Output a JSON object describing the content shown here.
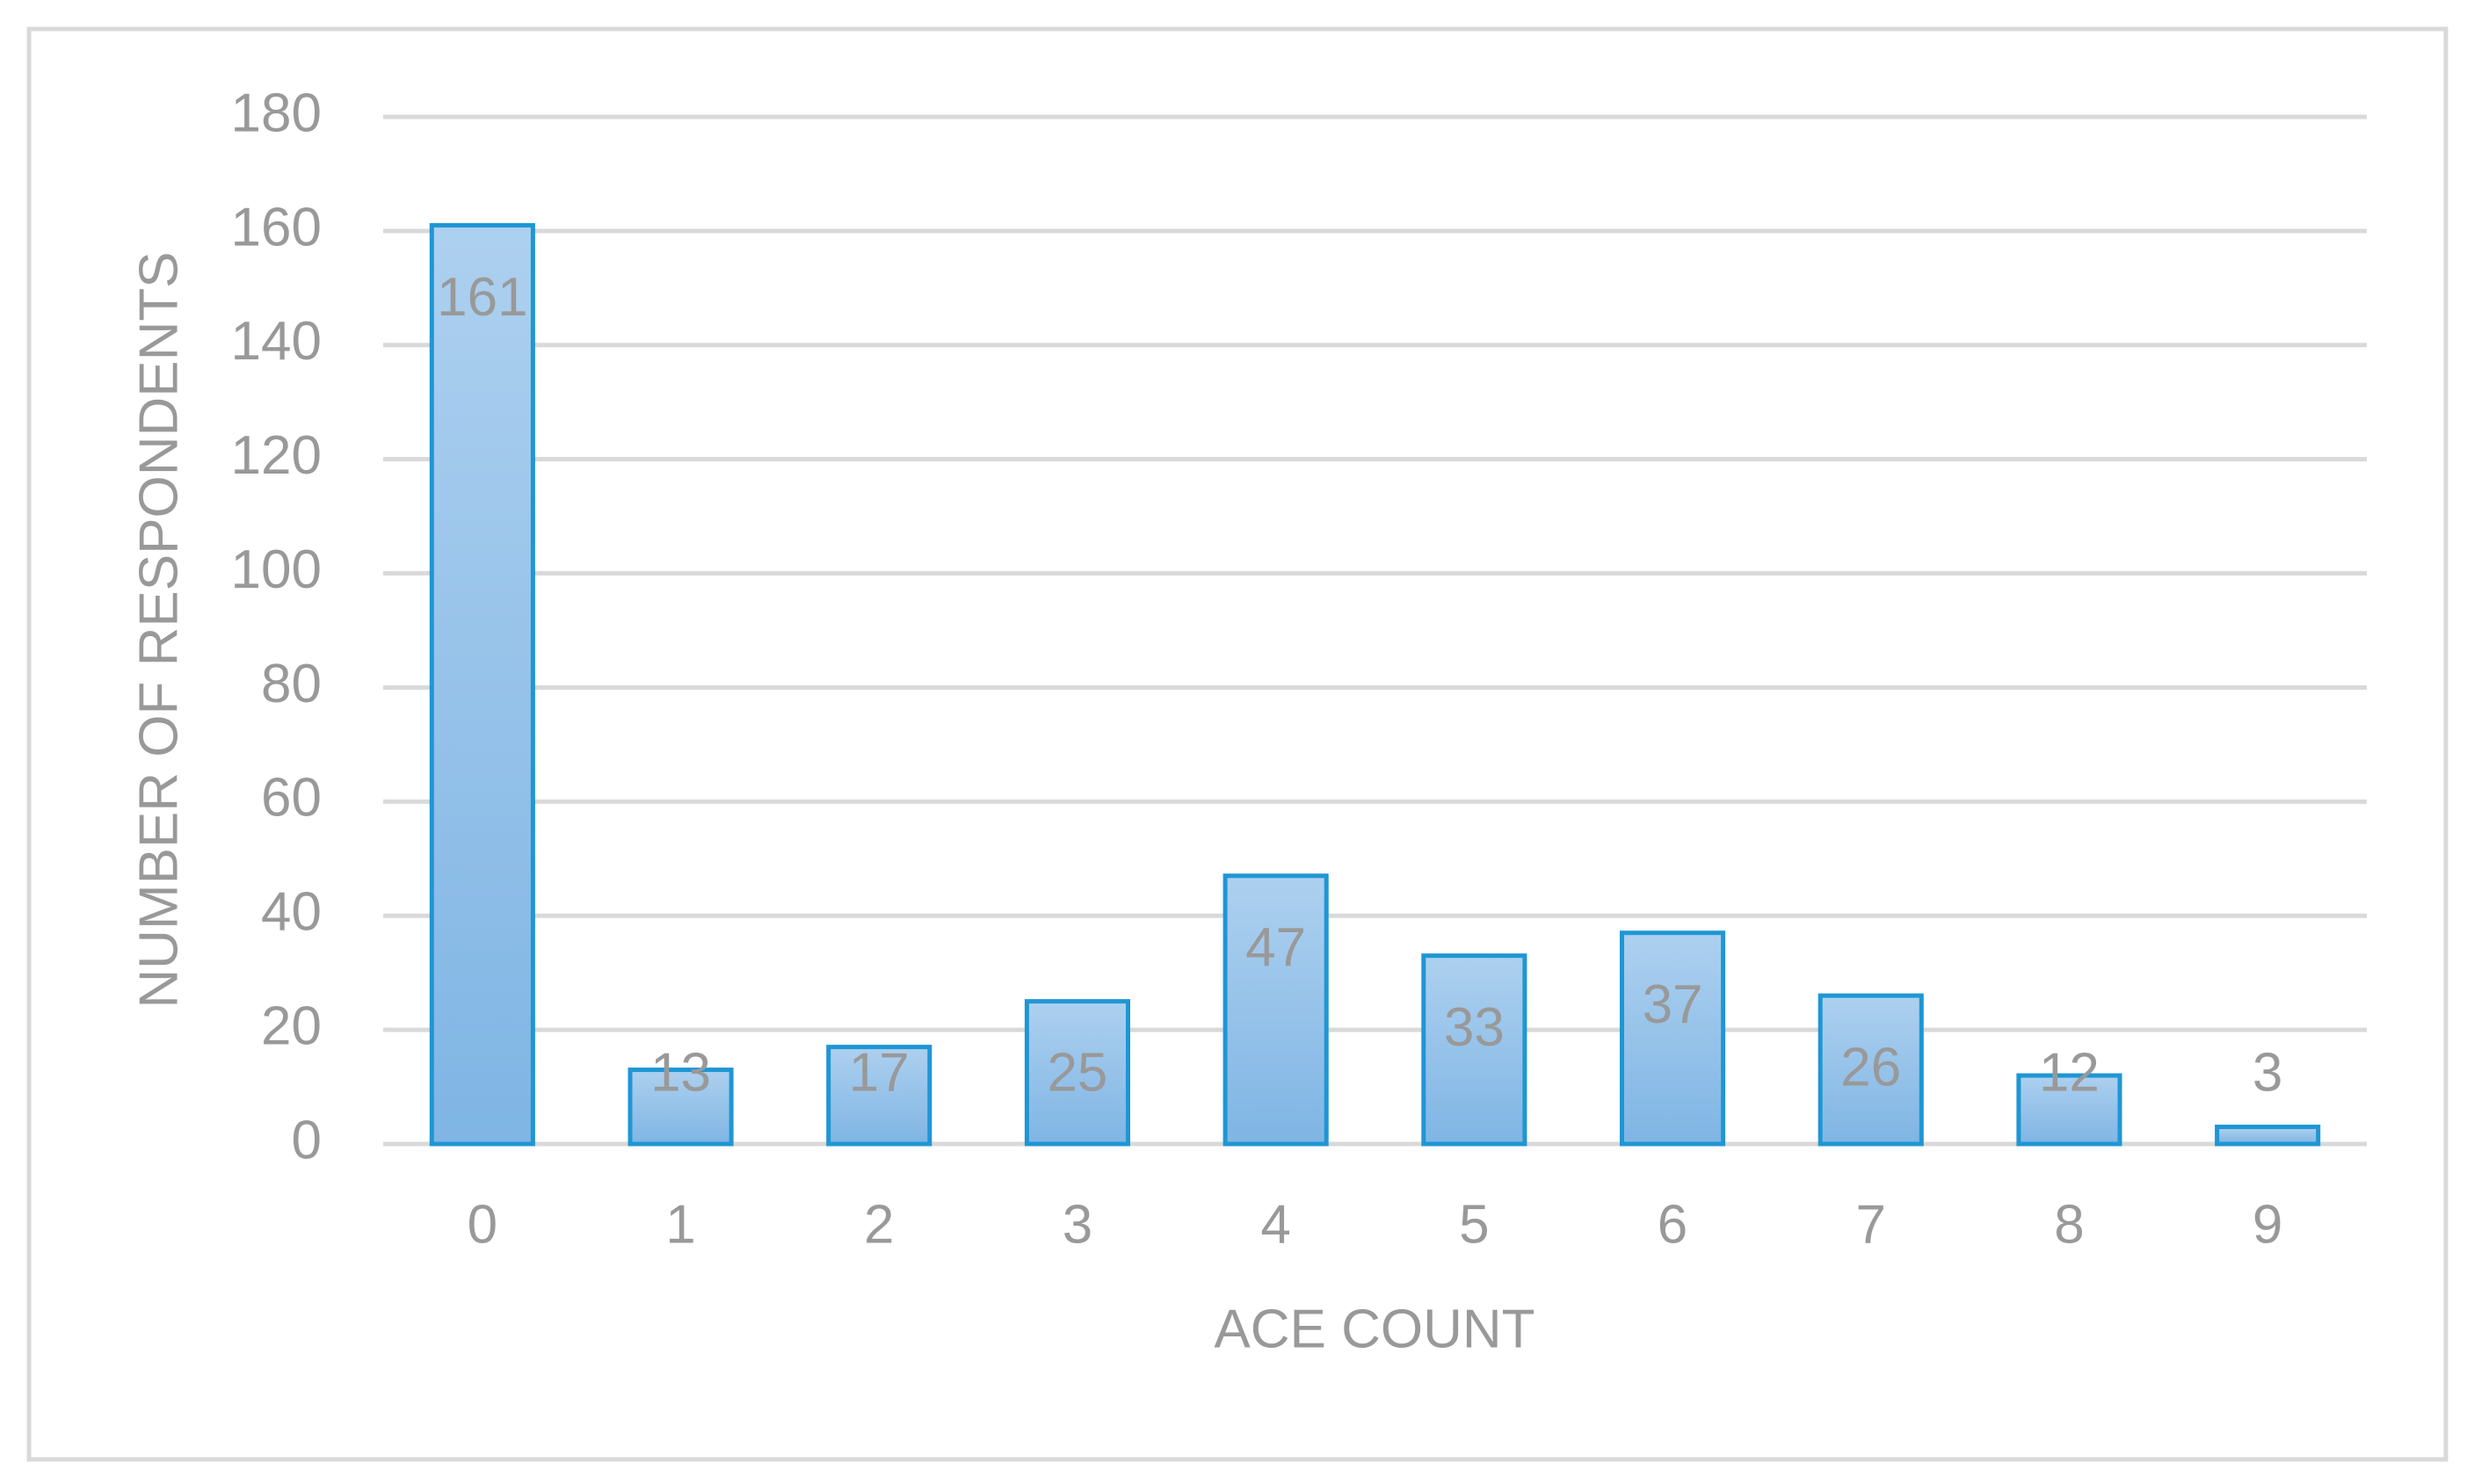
{
  "chart_data": {
    "type": "bar",
    "x_label": "ACE COUNT",
    "y_label": "NUMBER OF RESPONDENTS",
    "categories": [
      "0",
      "1",
      "2",
      "3",
      "4",
      "5",
      "6",
      "7",
      "8",
      "9"
    ],
    "values": [
      161,
      13,
      17,
      25,
      47,
      33,
      37,
      26,
      12,
      3
    ],
    "color": "#1f96d4",
    "ylim": [
      0,
      180
    ],
    "yticks": [
      0,
      20,
      40,
      60,
      80,
      100,
      120,
      140,
      160,
      180
    ],
    "grid": true
  }
}
